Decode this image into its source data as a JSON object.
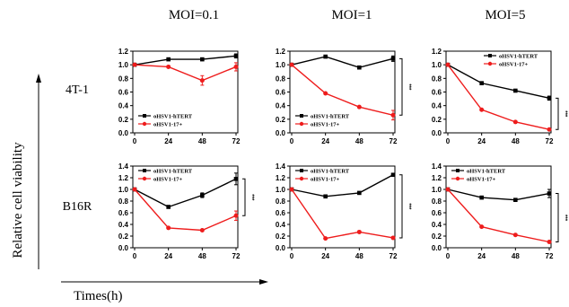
{
  "figure": {
    "column_titles": [
      "MOI=0.1",
      "MOI=1",
      "MOI=5"
    ],
    "row_labels": [
      "4T-1",
      "B16R"
    ],
    "ylabel": "Relative cell viability",
    "xlabel": "Times(h)"
  },
  "colors": {
    "hTERT": "#000000",
    "17plus": "#ee1c1c",
    "axis": "#000000"
  },
  "chart_data": [
    {
      "type": "line",
      "row": 0,
      "col": 0,
      "cell_line": "4T-1",
      "moi": "MOI=0.1",
      "x": [
        0,
        24,
        48,
        72
      ],
      "xticks": [
        0,
        24,
        48,
        72
      ],
      "ylim": [
        0,
        1.2
      ],
      "yticks": [
        0.0,
        0.2,
        0.4,
        0.6,
        0.8,
        1.0,
        1.2
      ],
      "ytick_labels": [
        "0.0",
        "0.2",
        "0.4",
        "0.6",
        "0.8",
        "1.0",
        "1.2"
      ],
      "legend": "bottom-left",
      "significance": "",
      "series": [
        {
          "name": "oHSV1-hTERT",
          "values": [
            1.0,
            1.08,
            1.08,
            1.13
          ],
          "errors": [
            0,
            0.01,
            0.01,
            0.03
          ]
        },
        {
          "name": "oHSV1-17+",
          "values": [
            1.0,
            0.97,
            0.77,
            0.97
          ],
          "errors": [
            0,
            0.01,
            0.07,
            0.06
          ]
        }
      ]
    },
    {
      "type": "line",
      "row": 0,
      "col": 1,
      "cell_line": "4T-1",
      "moi": "MOI=1",
      "x": [
        0,
        24,
        48,
        72
      ],
      "xticks": [
        0,
        24,
        48,
        72
      ],
      "ylim": [
        0,
        1.2
      ],
      "yticks": [
        0.0,
        0.2,
        0.4,
        0.6,
        0.8,
        1.0,
        1.2
      ],
      "ytick_labels": [
        "0.0",
        "0.2",
        "0.4",
        "0.6",
        "0.8",
        "1.0",
        "1.2"
      ],
      "legend": "bottom-left",
      "significance": "***",
      "series": [
        {
          "name": "oHSV1-hTERT",
          "values": [
            1.0,
            1.12,
            0.96,
            1.09
          ],
          "errors": [
            0,
            0.01,
            0.02,
            0.04
          ]
        },
        {
          "name": "oHSV1-17+",
          "values": [
            1.0,
            0.58,
            0.38,
            0.26
          ],
          "errors": [
            0,
            0.01,
            0.01,
            0.07
          ]
        }
      ]
    },
    {
      "type": "line",
      "row": 0,
      "col": 2,
      "cell_line": "4T-1",
      "moi": "MOI=5",
      "x": [
        0,
        24,
        48,
        72
      ],
      "xticks": [
        0,
        24,
        48,
        72
      ],
      "ylim": [
        0,
        1.2
      ],
      "yticks": [
        0.0,
        0.2,
        0.4,
        0.6,
        0.8,
        1.0,
        1.2
      ],
      "ytick_labels": [
        "0.0",
        "0.2",
        "0.4",
        "0.6",
        "0.8",
        "1.0",
        "1.2"
      ],
      "legend": "top-right",
      "significance": "***",
      "series": [
        {
          "name": "oHSV1-hTERT",
          "values": [
            1.0,
            0.73,
            0.62,
            0.51
          ],
          "errors": [
            0,
            0.01,
            0.01,
            0.03
          ]
        },
        {
          "name": "oHSV1-17+",
          "values": [
            1.0,
            0.34,
            0.16,
            0.05
          ],
          "errors": [
            0,
            0.01,
            0.01,
            0.01
          ]
        }
      ]
    },
    {
      "type": "line",
      "row": 1,
      "col": 0,
      "cell_line": "B16R",
      "moi": "MOI=0.1",
      "x": [
        0,
        24,
        48,
        72
      ],
      "xticks": [
        0,
        24,
        48,
        72
      ],
      "ylim": [
        0,
        1.4
      ],
      "yticks": [
        0.0,
        0.2,
        0.4,
        0.6,
        0.8,
        1.0,
        1.2,
        1.4
      ],
      "ytick_labels": [
        "0.0",
        "0.2",
        "0.4",
        "0.6",
        "0.8",
        "1.0",
        "1.2",
        "1.4"
      ],
      "legend": "top-left",
      "significance": "***",
      "series": [
        {
          "name": "oHSV1-hTERT",
          "values": [
            1.0,
            0.7,
            0.9,
            1.18
          ],
          "errors": [
            0,
            0.01,
            0.04,
            0.1
          ]
        },
        {
          "name": "oHSV1-17+",
          "values": [
            1.0,
            0.34,
            0.3,
            0.55
          ],
          "errors": [
            0,
            0.01,
            0.01,
            0.08
          ]
        }
      ]
    },
    {
      "type": "line",
      "row": 1,
      "col": 1,
      "cell_line": "B16R",
      "moi": "MOI=1",
      "x": [
        0,
        24,
        48,
        72
      ],
      "xticks": [
        0,
        24,
        48,
        72
      ],
      "ylim": [
        0,
        1.4
      ],
      "yticks": [
        0.0,
        0.2,
        0.4,
        0.6,
        0.8,
        1.0,
        1.2,
        1.4
      ],
      "ytick_labels": [
        "0.0",
        "0.2",
        "0.4",
        "0.6",
        "0.8",
        "1.0",
        "1.2",
        "1.4"
      ],
      "legend": "top-left",
      "significance": "***",
      "series": [
        {
          "name": "oHSV1-hTERT",
          "values": [
            1.0,
            0.88,
            0.94,
            1.25
          ],
          "errors": [
            0,
            0.01,
            0.01,
            0.02
          ]
        },
        {
          "name": "oHSV1-17+",
          "values": [
            1.0,
            0.16,
            0.27,
            0.17
          ],
          "errors": [
            0,
            0.01,
            0.01,
            0.01
          ]
        }
      ]
    },
    {
      "type": "line",
      "row": 1,
      "col": 2,
      "cell_line": "B16R",
      "moi": "MOI=5",
      "x": [
        0,
        24,
        48,
        72
      ],
      "xticks": [
        0,
        24,
        48,
        72
      ],
      "ylim": [
        0,
        1.4
      ],
      "yticks": [
        0.0,
        0.2,
        0.4,
        0.6,
        0.8,
        1.0,
        1.2,
        1.4
      ],
      "ytick_labels": [
        "0.0",
        "0.2",
        "0.4",
        "0.6",
        "0.8",
        "1.0",
        "1.2",
        "1.4"
      ],
      "legend": "top-left",
      "significance": "***",
      "series": [
        {
          "name": "oHSV1-hTERT",
          "values": [
            1.0,
            0.86,
            0.82,
            0.93
          ],
          "errors": [
            0,
            0.01,
            0.01,
            0.07
          ]
        },
        {
          "name": "oHSV1-17+",
          "values": [
            1.0,
            0.36,
            0.22,
            0.1
          ],
          "errors": [
            0,
            0.01,
            0.01,
            0.01
          ]
        }
      ]
    }
  ]
}
